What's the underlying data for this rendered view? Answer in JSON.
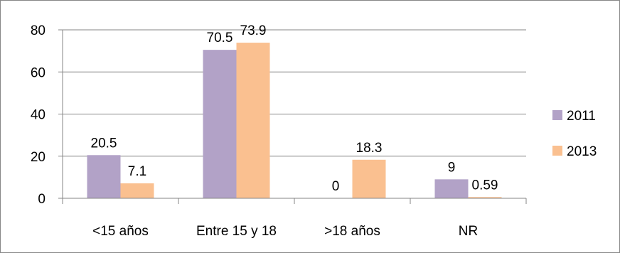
{
  "chart_data": {
    "type": "bar",
    "categories": [
      "<15 años",
      "Entre 15 y 18",
      ">18 años",
      "NR"
    ],
    "series": [
      {
        "name": "2011",
        "values": [
          20.5,
          70.5,
          0,
          9
        ],
        "labels": [
          "20.5",
          "70.5",
          "0",
          "9"
        ]
      },
      {
        "name": "2013",
        "values": [
          7.1,
          73.9,
          18.3,
          0.59
        ],
        "labels": [
          "7.1",
          "73.9",
          "18.3",
          "0.59"
        ]
      }
    ],
    "ylim": [
      0,
      80
    ],
    "yticks": [
      0,
      20,
      40,
      60,
      80
    ],
    "grid": true,
    "legend_position": "right",
    "colors": {
      "2011": "#b2a2c7",
      "2013": "#fac090",
      "grid": "#868686",
      "axis": "#868686"
    }
  }
}
